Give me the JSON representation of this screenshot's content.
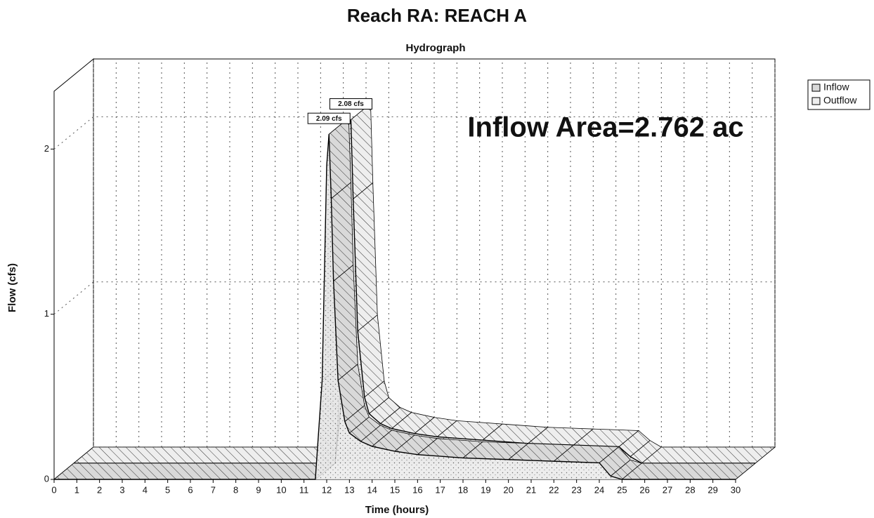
{
  "chart_data": {
    "type": "hydrograph3d",
    "title": "Reach RA: REACH A",
    "subtitle": "Hydrograph",
    "annotation": "Inflow Area=2.762 ac",
    "x_label": "Time (hours)",
    "y_label": "Flow (cfs)",
    "x": [
      0,
      11.5,
      11.8,
      12.0,
      12.1,
      12.2,
      12.3,
      12.5,
      12.8,
      13,
      13.5,
      14,
      15,
      16,
      18,
      20,
      22,
      24,
      24.5,
      25,
      30
    ],
    "series": [
      {
        "name": "Inflow",
        "color": "#d9d9d9",
        "values": [
          0,
          0,
          0.6,
          1.9,
          2.09,
          1.7,
          1.2,
          0.6,
          0.35,
          0.28,
          0.23,
          0.2,
          0.17,
          0.15,
          0.13,
          0.12,
          0.11,
          0.1,
          0.02,
          0,
          0
        ],
        "value_labels": [
          null,
          null,
          null,
          null,
          "2.09 cfs",
          null,
          null,
          null,
          null,
          null,
          null,
          null,
          null,
          null,
          null,
          null,
          null,
          null,
          null,
          null,
          null
        ]
      },
      {
        "name": "Outflow",
        "color": "#eeeeee",
        "values": [
          0,
          0,
          0.4,
          1.7,
          2.05,
          2.08,
          1.6,
          0.8,
          0.4,
          0.3,
          0.24,
          0.21,
          0.18,
          0.16,
          0.14,
          0.12,
          0.11,
          0.1,
          0.04,
          0,
          0
        ],
        "value_labels": [
          null,
          null,
          null,
          null,
          null,
          "2.08 cfs",
          null,
          null,
          null,
          null,
          null,
          null,
          null,
          null,
          null,
          null,
          null,
          null,
          null,
          null,
          null
        ]
      }
    ],
    "xlim": [
      0,
      30
    ],
    "xticks": [
      0,
      1,
      2,
      3,
      4,
      5,
      6,
      7,
      8,
      9,
      10,
      11,
      12,
      13,
      14,
      15,
      16,
      17,
      18,
      19,
      20,
      21,
      22,
      23,
      24,
      25,
      26,
      27,
      28,
      29,
      30
    ],
    "ylim": [
      0,
      2.35
    ],
    "yticks": [
      0,
      1,
      2
    ],
    "grid": true,
    "legend": "top-right"
  }
}
